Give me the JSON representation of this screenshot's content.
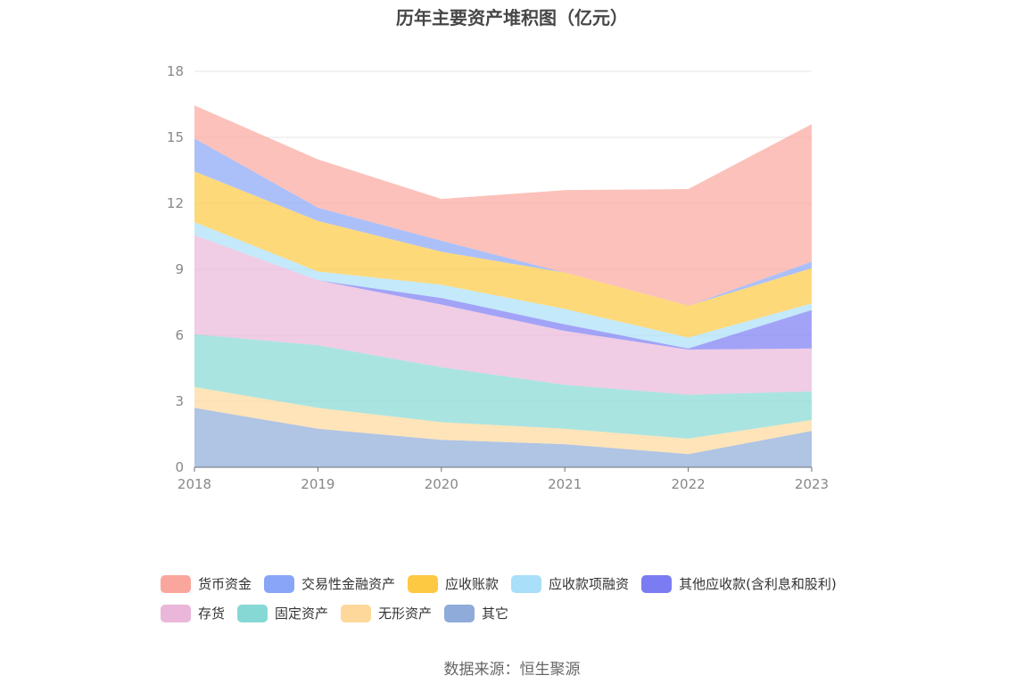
{
  "chart_data": {
    "type": "area",
    "title": "历年主要资产堆积图（亿元）",
    "categories": [
      "2018",
      "2019",
      "2020",
      "2021",
      "2022",
      "2023"
    ],
    "y_ticks": [
      "0",
      "3",
      "6",
      "9",
      "12",
      "15",
      "18"
    ],
    "ylim": [
      0,
      18
    ],
    "grid": true,
    "legend_position": "bottom",
    "stacked": true,
    "series": [
      {
        "name": "其它",
        "color": "#8fabd9",
        "values": [
          2.7,
          1.75,
          1.25,
          1.05,
          0.6,
          1.65
        ]
      },
      {
        "name": "无形资产",
        "color": "#fdd89a",
        "values": [
          0.95,
          0.95,
          0.8,
          0.7,
          0.7,
          0.5
        ]
      },
      {
        "name": "固定资产",
        "color": "#86d8d4",
        "values": [
          2.4,
          2.85,
          2.5,
          2.0,
          2.0,
          1.3
        ]
      },
      {
        "name": "存货",
        "color": "#eab7da",
        "values": [
          4.5,
          2.95,
          2.85,
          2.45,
          2.05,
          1.95
        ]
      },
      {
        "name": "其他应收款(含利息和股利)",
        "color": "#7b7cf2",
        "values": [
          0.0,
          0.0,
          0.3,
          0.3,
          0.05,
          1.75
        ]
      },
      {
        "name": "应收款项融资",
        "color": "#a9dff8",
        "values": [
          0.6,
          0.4,
          0.6,
          0.7,
          0.5,
          0.3
        ]
      },
      {
        "name": "应收账款",
        "color": "#fec942",
        "values": [
          2.3,
          2.3,
          1.5,
          1.65,
          1.45,
          1.6
        ]
      },
      {
        "name": "交易性金融资产",
        "color": "#88a5f7",
        "values": [
          1.5,
          0.6,
          0.5,
          0.0,
          0.0,
          0.3
        ]
      },
      {
        "name": "货币资金",
        "color": "#fba69c",
        "values": [
          1.5,
          2.2,
          1.9,
          3.75,
          5.3,
          6.25
        ]
      }
    ]
  },
  "legend": {
    "row1": [
      "货币资金",
      "交易性金融资产",
      "应收账款",
      "应收款项融资",
      "其他应收款(含利息和股利)"
    ],
    "row2": [
      "存货",
      "固定资产",
      "无形资产",
      "其它"
    ]
  },
  "source": "数据来源：恒生聚源"
}
